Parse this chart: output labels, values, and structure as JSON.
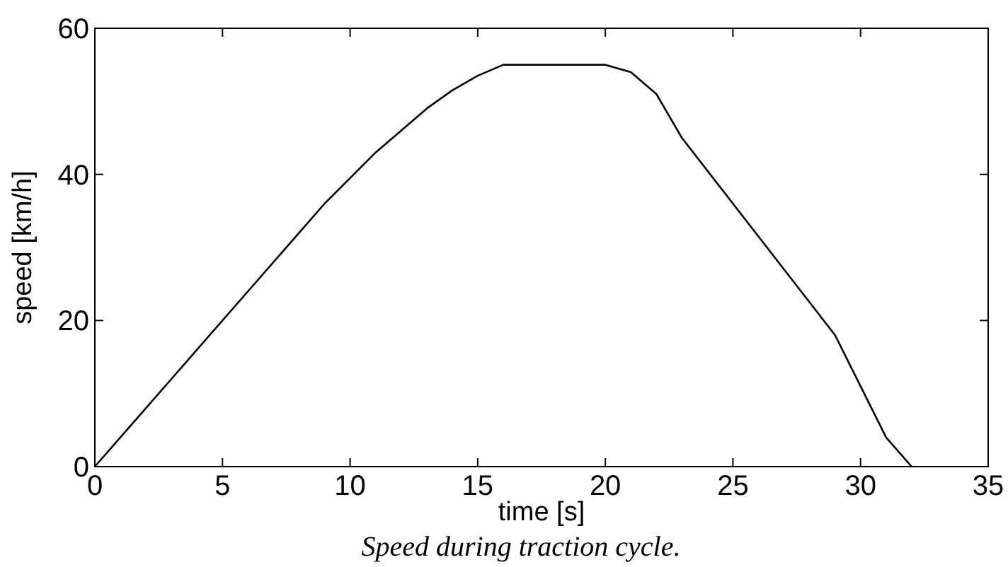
{
  "chart_data": {
    "type": "line",
    "xlabel": "time [s]",
    "ylabel": "speed [km/h]",
    "annotations": [
      "Speed during traction cycle."
    ],
    "xlim": [
      0,
      35
    ],
    "xticks": [
      0,
      5,
      10,
      15,
      20,
      25,
      30,
      35
    ],
    "ylim": [
      0,
      60
    ],
    "yticks": [
      0,
      20,
      40,
      60
    ],
    "x": [
      0,
      1,
      2,
      4,
      6,
      8,
      9,
      10,
      11,
      12,
      13,
      14,
      15,
      16,
      17,
      18,
      19,
      20,
      21,
      22,
      22.5,
      23,
      25,
      27,
      29,
      31,
      32
    ],
    "series": [
      {
        "color": "#000000",
        "values": [
          0,
          4,
          8,
          16,
          24,
          32,
          36,
          39.5,
          43,
          46,
          49,
          51.5,
          53.5,
          55,
          55,
          55,
          55,
          55,
          54,
          51,
          48,
          45,
          36,
          27,
          18,
          4,
          0
        ]
      }
    ],
    "grid": false
  }
}
